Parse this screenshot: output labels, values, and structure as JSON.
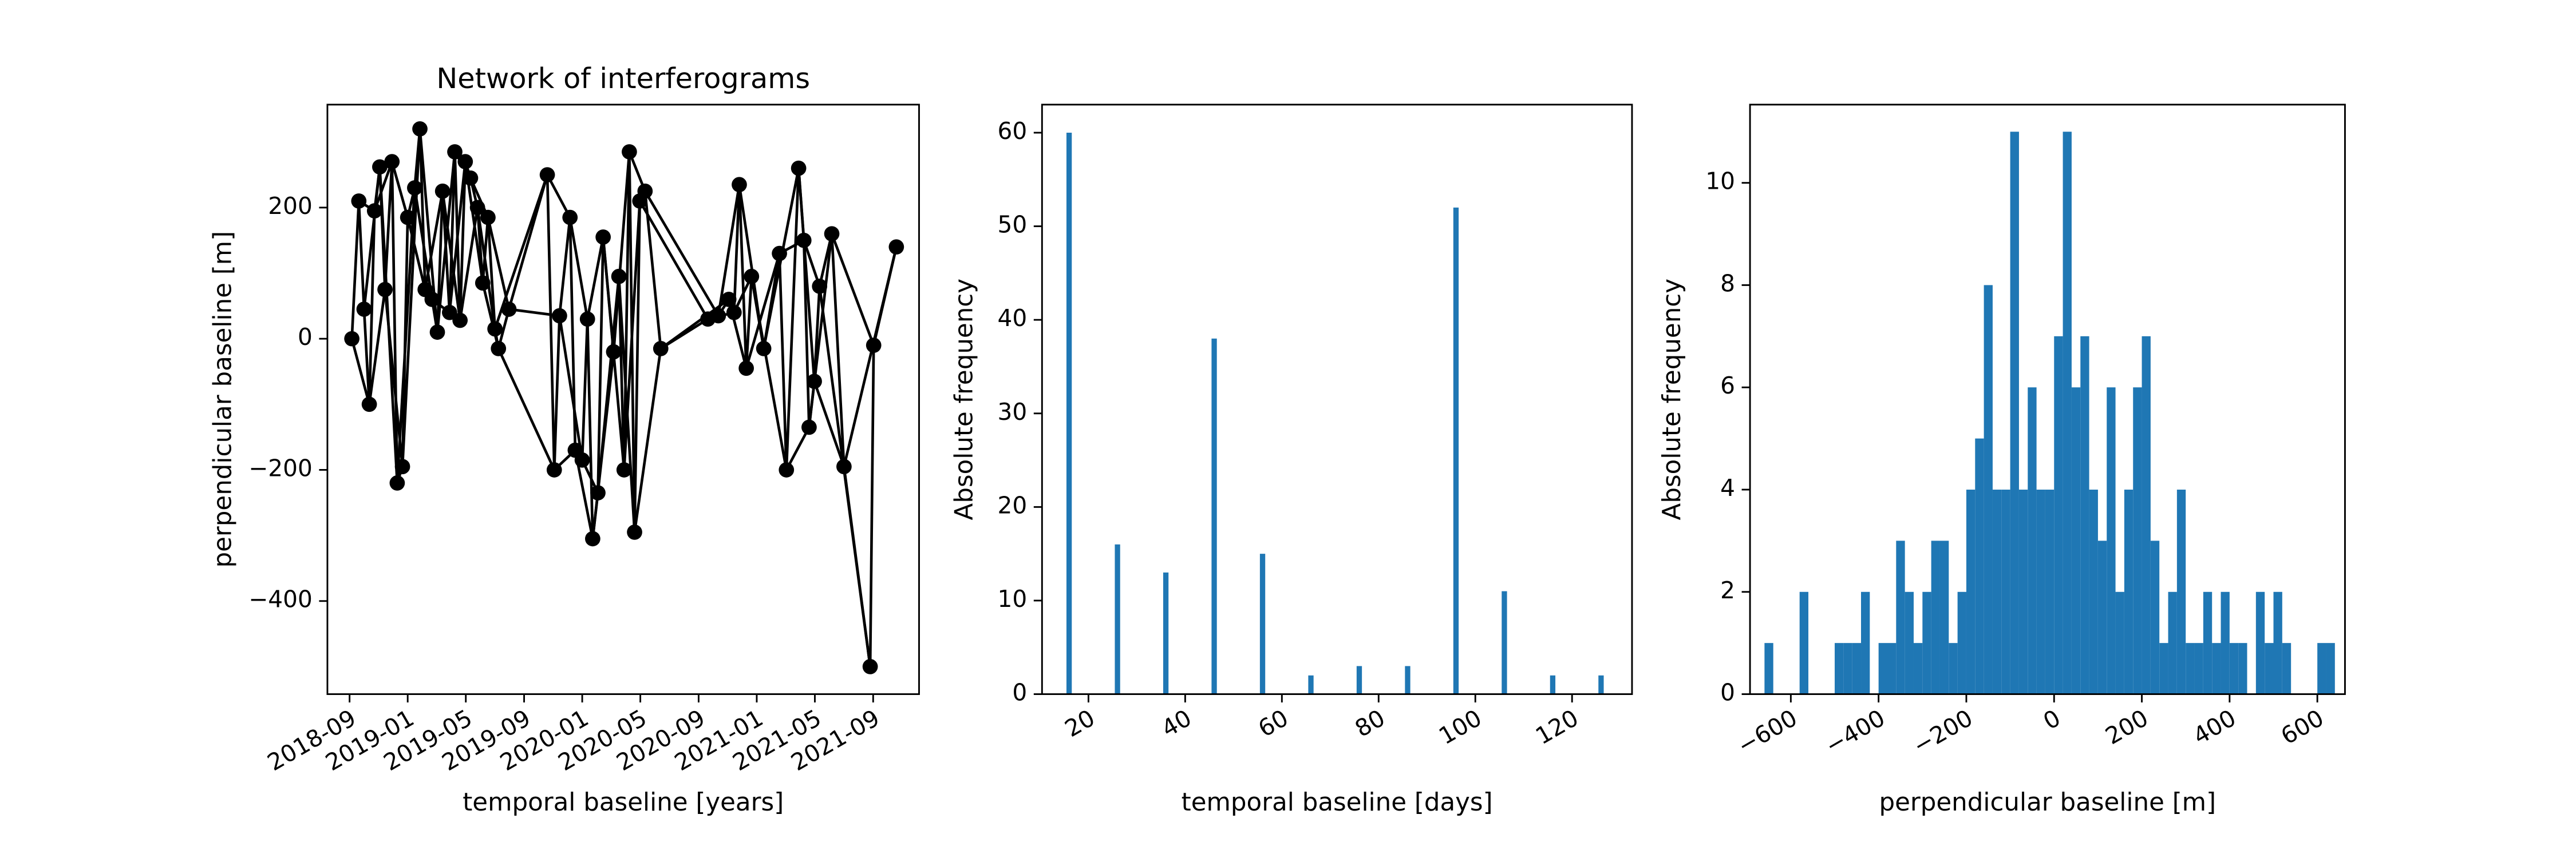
{
  "chart_data": [
    {
      "type": "network",
      "title": "Network of interferograms",
      "xlabel": "temporal baseline [years]",
      "ylabel": "perpendicular baseline [m]",
      "color": "#000000",
      "x": [
        2018.68,
        2018.72,
        2018.75,
        2018.78,
        2018.81,
        2018.84,
        2018.87,
        2018.91,
        2018.94,
        2018.97,
        2019.0,
        2019.04,
        2019.07,
        2019.1,
        2019.14,
        2019.17,
        2019.2,
        2019.24,
        2019.27,
        2019.3,
        2019.33,
        2019.36,
        2019.4,
        2019.43,
        2019.46,
        2019.5,
        2019.52,
        2019.58,
        2019.8,
        2019.84,
        2019.87,
        2019.93,
        2019.96,
        2020.0,
        2020.03,
        2020.06,
        2020.09,
        2020.12,
        2020.18,
        2020.21,
        2020.24,
        2020.27,
        2020.3,
        2020.33,
        2020.36,
        2020.45,
        2020.72,
        2020.78,
        2020.84,
        2020.87,
        2020.9,
        2020.94,
        2020.97,
        2021.04,
        2021.13,
        2021.17,
        2021.24,
        2021.27,
        2021.3,
        2021.33,
        2021.36,
        2021.43,
        2021.5,
        2021.65,
        2021.67,
        2021.8
      ],
      "values": [
        0,
        210,
        45,
        -100,
        195,
        262,
        75,
        270,
        -220,
        -195,
        185,
        230,
        320,
        75,
        60,
        10,
        225,
        40,
        285,
        28,
        270,
        245,
        200,
        85,
        185,
        15,
        -15,
        45,
        250,
        -200,
        35,
        185,
        -170,
        -185,
        30,
        -305,
        -235,
        155,
        -20,
        95,
        -200,
        285,
        -295,
        210,
        225,
        -15,
        30,
        35,
        60,
        40,
        235,
        -45,
        95,
        -15,
        130,
        -200,
        260,
        150,
        -135,
        -65,
        80,
        160,
        -195,
        -500,
        -10,
        140
      ],
      "edges": [
        [
          0,
          1
        ],
        [
          1,
          2
        ],
        [
          2,
          3
        ],
        [
          3,
          4
        ],
        [
          4,
          5
        ],
        [
          5,
          6
        ],
        [
          6,
          7
        ],
        [
          7,
          8
        ],
        [
          8,
          9
        ],
        [
          9,
          10
        ],
        [
          10,
          11
        ],
        [
          11,
          12
        ],
        [
          12,
          13
        ],
        [
          13,
          14
        ],
        [
          14,
          15
        ],
        [
          15,
          16
        ],
        [
          16,
          17
        ],
        [
          17,
          18
        ],
        [
          18,
          19
        ],
        [
          19,
          20
        ],
        [
          20,
          21
        ],
        [
          21,
          22
        ],
        [
          22,
          23
        ],
        [
          23,
          24
        ],
        [
          24,
          25
        ],
        [
          25,
          26
        ],
        [
          26,
          27
        ],
        [
          27,
          28
        ],
        [
          28,
          29
        ],
        [
          29,
          30
        ],
        [
          30,
          31
        ],
        [
          31,
          32
        ],
        [
          32,
          33
        ],
        [
          33,
          34
        ],
        [
          34,
          35
        ],
        [
          35,
          36
        ],
        [
          36,
          37
        ],
        [
          37,
          38
        ],
        [
          38,
          39
        ],
        [
          39,
          40
        ],
        [
          40,
          41
        ],
        [
          41,
          42
        ],
        [
          42,
          43
        ],
        [
          43,
          44
        ],
        [
          44,
          45
        ],
        [
          45,
          46
        ],
        [
          46,
          47
        ],
        [
          47,
          48
        ],
        [
          48,
          49
        ],
        [
          49,
          50
        ],
        [
          50,
          51
        ],
        [
          51,
          52
        ],
        [
          52,
          53
        ],
        [
          53,
          54
        ],
        [
          54,
          55
        ],
        [
          55,
          56
        ],
        [
          56,
          57
        ],
        [
          57,
          58
        ],
        [
          58,
          59
        ],
        [
          59,
          60
        ],
        [
          60,
          61
        ],
        [
          61,
          62
        ],
        [
          62,
          63
        ],
        [
          63,
          64
        ],
        [
          64,
          65
        ],
        [
          0,
          3
        ],
        [
          1,
          4
        ],
        [
          2,
          5
        ],
        [
          3,
          6
        ],
        [
          4,
          7
        ],
        [
          5,
          8
        ],
        [
          6,
          9
        ],
        [
          7,
          10
        ],
        [
          8,
          11
        ],
        [
          9,
          12
        ],
        [
          10,
          13
        ],
        [
          11,
          14
        ],
        [
          12,
          15
        ],
        [
          13,
          16
        ],
        [
          14,
          17
        ],
        [
          15,
          18
        ],
        [
          16,
          19
        ],
        [
          17,
          20
        ],
        [
          18,
          21
        ],
        [
          19,
          22
        ],
        [
          20,
          23
        ],
        [
          21,
          24
        ],
        [
          22,
          25
        ],
        [
          23,
          26
        ],
        [
          24,
          27
        ],
        [
          25,
          28
        ],
        [
          26,
          29
        ],
        [
          27,
          30
        ],
        [
          28,
          31
        ],
        [
          29,
          32
        ],
        [
          30,
          33
        ],
        [
          31,
          34
        ],
        [
          32,
          35
        ],
        [
          33,
          36
        ],
        [
          34,
          37
        ],
        [
          35,
          38
        ],
        [
          36,
          39
        ],
        [
          37,
          40
        ],
        [
          38,
          41
        ],
        [
          39,
          42
        ],
        [
          40,
          43
        ],
        [
          41,
          44
        ],
        [
          42,
          45
        ],
        [
          43,
          46
        ],
        [
          44,
          47
        ],
        [
          45,
          48
        ],
        [
          46,
          49
        ],
        [
          47,
          50
        ],
        [
          48,
          51
        ],
        [
          49,
          52
        ],
        [
          50,
          53
        ],
        [
          51,
          54
        ],
        [
          52,
          55
        ],
        [
          53,
          56
        ],
        [
          54,
          57
        ],
        [
          55,
          58
        ],
        [
          56,
          59
        ],
        [
          57,
          60
        ],
        [
          58,
          61
        ],
        [
          59,
          62
        ],
        [
          60,
          63
        ],
        [
          61,
          64
        ],
        [
          62,
          65
        ]
      ],
      "xlim": [
        2018.54,
        2021.93
      ],
      "xticks": [
        {
          "value": 2018.667,
          "label": "2018-09"
        },
        {
          "value": 2019.0,
          "label": "2019-01"
        },
        {
          "value": 2019.333,
          "label": "2019-05"
        },
        {
          "value": 2019.667,
          "label": "2019-09"
        },
        {
          "value": 2020.0,
          "label": "2020-01"
        },
        {
          "value": 2020.333,
          "label": "2020-05"
        },
        {
          "value": 2020.667,
          "label": "2020-09"
        },
        {
          "value": 2021.0,
          "label": "2021-01"
        },
        {
          "value": 2021.333,
          "label": "2021-05"
        },
        {
          "value": 2021.667,
          "label": "2021-09"
        }
      ],
      "ylim": [
        -542,
        357
      ],
      "yticks": [
        {
          "value": -400,
          "label": "−400"
        },
        {
          "value": -200,
          "label": "−200"
        },
        0,
        200
      ]
    },
    {
      "type": "bar",
      "xlabel": "temporal baseline [days]",
      "ylabel": "Absolute frequency",
      "color": "#1f77b4",
      "x": [
        16,
        26,
        36,
        46,
        56,
        66,
        76,
        86,
        96,
        106,
        116,
        126
      ],
      "values": [
        60,
        16,
        13,
        38,
        15,
        2,
        3,
        3,
        52,
        11,
        2,
        2
      ],
      "xlim": [
        10.4,
        132.4
      ],
      "xticks": [
        20,
        40,
        60,
        80,
        100,
        120
      ],
      "ylim": [
        0,
        63
      ],
      "yticks": [
        0,
        10,
        20,
        30,
        40,
        50,
        60
      ]
    },
    {
      "type": "histogram",
      "xlabel": "perpendicular baseline [m]",
      "ylabel": "Absolute frequency",
      "color": "#1f77b4",
      "bins": [
        -660,
        -640,
        -620,
        -600,
        -580,
        -560,
        -540,
        -520,
        -500,
        -480,
        -460,
        -440,
        -420,
        -400,
        -380,
        -360,
        -340,
        -320,
        -300,
        -280,
        -260,
        -240,
        -220,
        -200,
        -180,
        -160,
        -140,
        -120,
        -100,
        -80,
        -60,
        -40,
        -20,
        0,
        20,
        40,
        60,
        80,
        100,
        120,
        140,
        160,
        180,
        200,
        220,
        240,
        260,
        280,
        300,
        320,
        340,
        360,
        380,
        400,
        420,
        440,
        460,
        480,
        500,
        520,
        540,
        560,
        580,
        600,
        620,
        640
      ],
      "values": [
        1,
        0,
        0,
        0,
        2,
        0,
        0,
        0,
        1,
        1,
        1,
        2,
        0,
        1,
        1,
        3,
        2,
        1,
        2,
        3,
        3,
        1,
        2,
        4,
        5,
        8,
        4,
        4,
        11,
        4,
        6,
        4,
        4,
        7,
        11,
        6,
        7,
        4,
        3,
        6,
        2,
        4,
        6,
        7,
        3,
        1,
        2,
        4,
        1,
        1,
        2,
        1,
        2,
        1,
        1,
        0,
        2,
        1,
        2,
        1,
        0,
        0,
        0,
        1,
        1
      ],
      "xlim": [
        -693,
        663
      ],
      "xticks": [
        {
          "value": -600,
          "label": "−600"
        },
        {
          "value": -400,
          "label": "−400"
        },
        {
          "value": -200,
          "label": "−200"
        },
        0,
        200,
        400,
        600
      ],
      "ylim": [
        0,
        11.53
      ],
      "yticks": [
        0,
        2,
        4,
        6,
        8,
        10
      ]
    }
  ]
}
